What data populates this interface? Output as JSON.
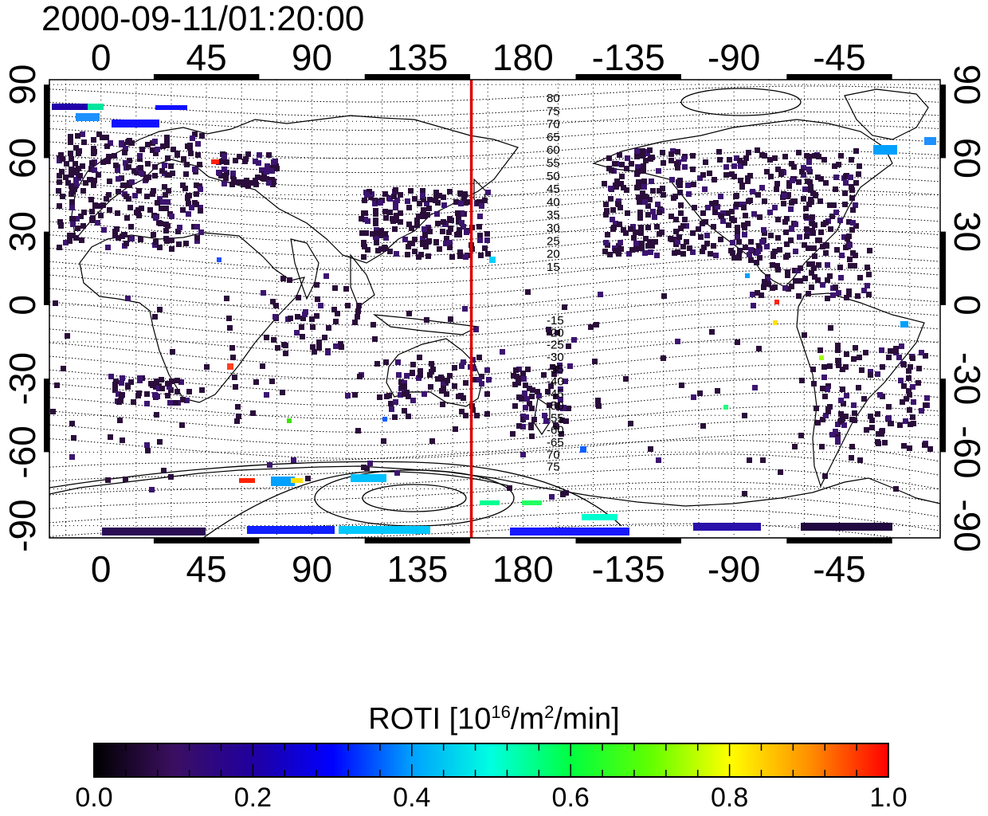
{
  "title": "2000-09-11/01:20:00",
  "map": {
    "lon_top_ticks": [
      "0",
      "45",
      "90",
      "135",
      "180",
      "-135",
      "-90",
      "-45"
    ],
    "lon_bottom_ticks": [
      "0",
      "45",
      "90",
      "135",
      "180",
      "-135",
      "-90",
      "-45"
    ],
    "lat_left_ticks": [
      "90",
      "60",
      "30",
      "0",
      "-30",
      "-60",
      "-90"
    ],
    "lat_right_ticks": [
      "90",
      "60",
      "30",
      "0",
      "-30",
      "-60",
      "-90"
    ],
    "lon_values": [
      0,
      45,
      90,
      135,
      180,
      225,
      270,
      315
    ],
    "lat_values": [
      90,
      60,
      30,
      0,
      -30,
      -60,
      -90
    ],
    "lon_range": [
      -22,
      358
    ],
    "lat_range": [
      -95,
      92
    ],
    "terminator_lon": 158,
    "terminator_color": "#dd0000",
    "mlat_labels_north": [
      "80",
      "75",
      "70",
      "65",
      "60",
      "55",
      "50",
      "45",
      "40",
      "35",
      "30",
      "25",
      "20",
      "15"
    ],
    "mlat_labels_south": [
      "-15",
      "-20",
      "-25",
      "-30",
      "-35",
      "-40",
      "-45",
      "-50",
      "-55",
      "-60",
      "-65",
      "70",
      "75"
    ]
  },
  "colorbar": {
    "title_main": "ROTI  [10",
    "title_sup1": "16",
    "title_mid": "/m",
    "title_sup2": "2",
    "title_end": "/min]",
    "ticks": [
      "0.0",
      "0.2",
      "0.4",
      "0.6",
      "0.8",
      "1.0"
    ],
    "tick_values": [
      0.0,
      0.2,
      0.4,
      0.6,
      0.8,
      1.0
    ],
    "range": [
      0.0,
      1.0
    ],
    "stops": [
      "#000000",
      "#3b0f60",
      "#2000a0",
      "#0000ff",
      "#00a0ff",
      "#00ffe0",
      "#00ff40",
      "#60ff00",
      "#ffff00",
      "#ff9000",
      "#ff0000"
    ]
  }
}
